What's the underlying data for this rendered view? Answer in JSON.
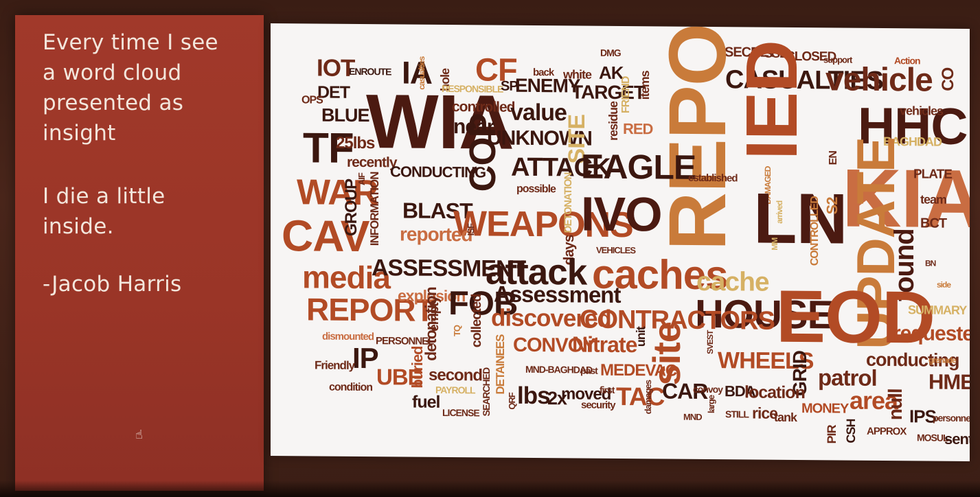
{
  "slide": {
    "quote_lines": [
      "Every time I see",
      "a word cloud",
      "presented as",
      "insight"
    ],
    "quote_lines_2": [
      "I die a little",
      "inside."
    ],
    "attribution": "-Jacob Harris",
    "cursor_icon": "hand-pointer"
  },
  "word_cloud": {
    "words": [
      "IOT",
      "ENROUTE",
      "IA",
      "CF",
      "DMG",
      "SECRET",
      "SSE",
      "CLOSED",
      "support",
      "Action",
      "DET",
      "casualties",
      "hole",
      "back",
      "white",
      "AK",
      "CASUALTIES",
      "vehicle",
      "CO",
      "OPS",
      "BLUE",
      "WIA",
      "RESPONSIBLE",
      "SP",
      "ENEMY",
      "TARGET",
      "items",
      "REPORTS",
      "HHC",
      "vehicles",
      "TF",
      "25lbs",
      "controlled",
      "value",
      "FRIEND",
      "residue",
      "BAGHDAD",
      "recently",
      "near",
      "UNKNOWN",
      "SITE",
      "RED",
      "IED",
      "EN",
      "CONDUCTING",
      "COP",
      "ATTACK",
      "EAGLE",
      "established",
      "KIA",
      "PLATE",
      "WAR",
      "AIF",
      "possible",
      "team",
      "CAV",
      "GROUP",
      "INFORMATION",
      "BLAST",
      "WEAPONS",
      "DETONATION",
      "IVO",
      "DAMAGED",
      "arrived",
      "LN",
      "BCT",
      "reported",
      "ISF",
      "days",
      "VEHICLES",
      "CONTROLLED",
      "S2",
      "MM",
      "BN",
      "media",
      "ASSESSMENT",
      "attack",
      "caches",
      "cache",
      "UPDATE",
      "found",
      "side",
      "REPORT",
      "explosion",
      "FOB",
      "Assessment",
      "HOUSE",
      "EOD",
      "SUMMARY",
      "dismounted",
      "PERSONNEL",
      "empty",
      "TQ",
      "discovered",
      "CONTRACTORS",
      "requested",
      "IP",
      "detonation",
      "collected",
      "CONVOY",
      "Nitrate",
      "unit",
      "site",
      "SVEST",
      "WHEELS",
      "conducting",
      "grenade",
      "Friendly",
      "UBE",
      "buried",
      "second",
      "DETAINEES",
      "MND-BAGHDAD",
      "past",
      "MEDEVAC",
      "GRID",
      "patrol",
      "HME",
      "condition",
      "fuel",
      "PAYROLL",
      "QRF",
      "SEARCHED",
      "lbs",
      "2x",
      "moved",
      "first",
      "TAC",
      "CAR",
      "convoy",
      "BDA",
      "location",
      "area",
      "null",
      "LICENSE",
      "security",
      "damages",
      "MND",
      "large",
      "STILL",
      "rice",
      "tank",
      "MONEY",
      "IPS",
      "personnel",
      "PIR",
      "CSH",
      "APPROX",
      "MOSUL",
      "sent"
    ]
  }
}
